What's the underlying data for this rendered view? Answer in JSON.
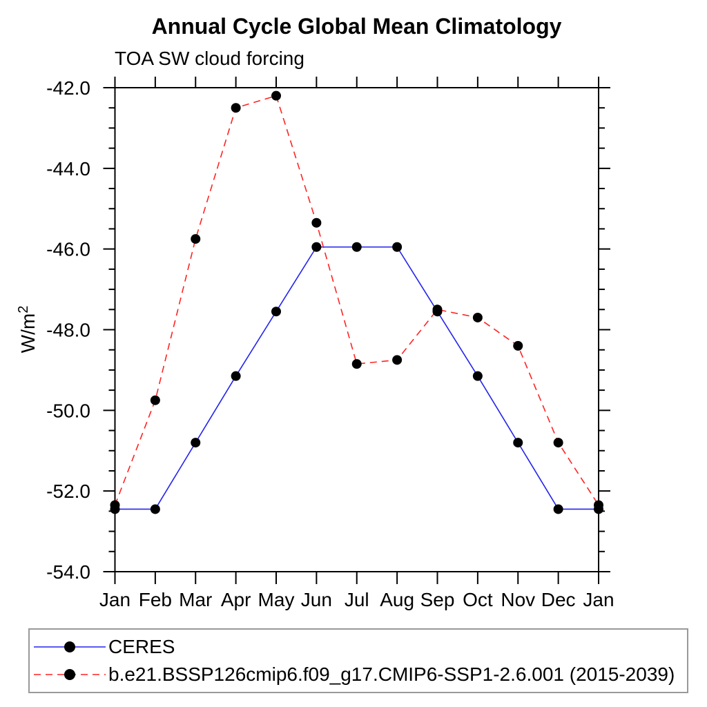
{
  "chart_data": {
    "type": "line",
    "title": "Annual Cycle Global Mean Climatology",
    "subtitle": "TOA SW cloud forcing",
    "ylabel": {
      "base": "W/m",
      "sup": "2",
      "full": "W/m²"
    },
    "xlabel": "",
    "categories": [
      "Jan",
      "Feb",
      "Mar",
      "Apr",
      "May",
      "Jun",
      "Jul",
      "Aug",
      "Sep",
      "Oct",
      "Nov",
      "Dec",
      "Jan"
    ],
    "y_axis": {
      "min": -54.0,
      "max": -42.0,
      "major_step": 2.0,
      "minor_step": 0.5,
      "tick_values": [
        -42.0,
        -44.0,
        -46.0,
        -48.0,
        -50.0,
        -52.0,
        -54.0
      ],
      "tick_labels": [
        "-42.0",
        "-44.0",
        "-46.0",
        "-48.0",
        "-50.0",
        "-52.0",
        "-54.0"
      ]
    },
    "ylim": [
      -54.0,
      -42.0
    ],
    "grid": false,
    "legend_position": "bottom",
    "marker_color": "#000000",
    "axis_color": "#000000",
    "series": [
      {
        "name": "CERES",
        "color": "#2222ee",
        "line_style": "solid",
        "values": [
          -52.45,
          -52.45,
          -50.8,
          -49.15,
          -47.55,
          -45.95,
          -45.95,
          -45.95,
          -47.55,
          -49.15,
          -50.8,
          -52.45,
          -52.45
        ]
      },
      {
        "name": "b.e21.BSSP126cmip6.f09_g17.CMIP6-SSP1-2.6.001 (2015-2039)",
        "color": "#ff2222",
        "line_style": "dashed",
        "values": [
          -52.35,
          -49.75,
          -45.75,
          -42.5,
          -42.2,
          -45.35,
          -48.85,
          -48.75,
          -47.5,
          -47.7,
          -48.4,
          -50.8,
          -52.35
        ]
      }
    ]
  }
}
